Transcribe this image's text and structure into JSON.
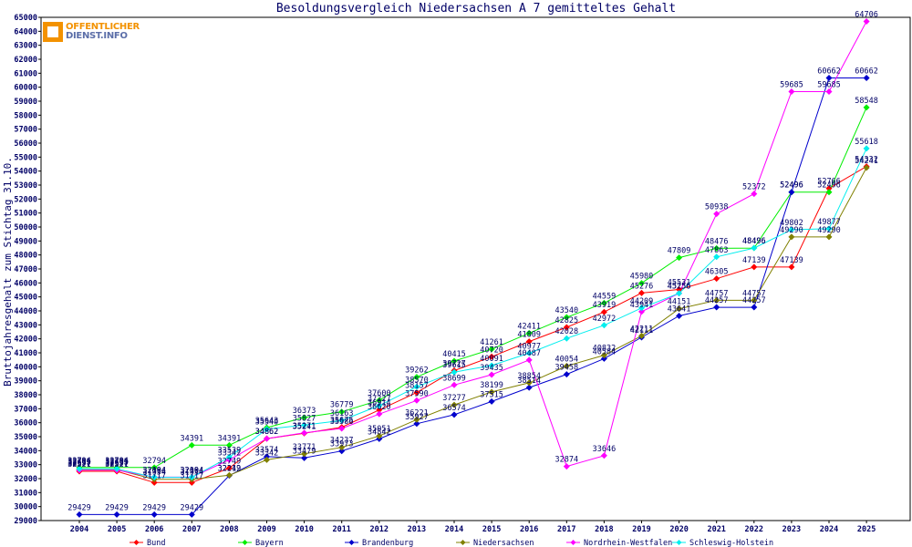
{
  "logo": {
    "line1": "OFFENTLICHER",
    "line2": "DIENST.INFO"
  },
  "chart_data": {
    "type": "line",
    "title": "Besoldungsvergleich Niedersachsen A 7 gemitteltes Gehalt",
    "xlabel": "",
    "ylabel": "Bruttojahresgehalt zum Stichtag 31.10.",
    "ylim": [
      29000,
      65000
    ],
    "ytick_step": 1000,
    "grid": false,
    "legend_position": "bottom",
    "x": [
      "2004",
      "2005",
      "2006",
      "2007",
      "2008",
      "2009",
      "2010",
      "2011",
      "2012",
      "2013",
      "2014",
      "2015",
      "2016",
      "2017",
      "2018",
      "2019",
      "2020",
      "2021",
      "2022",
      "2023",
      "2024",
      "2025"
    ],
    "series": [
      {
        "name": "Bund",
        "color": "#ff0000",
        "values": [
          32521,
          32521,
          31717,
          31717,
          32749,
          34862,
          35241,
          35675,
          36914,
          38157,
          39727,
          40720,
          41809,
          42825,
          43919,
          45276,
          45531,
          46305,
          47139,
          47139,
          52766,
          54332
        ]
      },
      {
        "name": "Bayern",
        "color": "#00ee00",
        "values": [
          32794,
          32794,
          32794,
          34391,
          34391,
          35643,
          36373,
          36779,
          37600,
          39262,
          40415,
          41261,
          42411,
          43540,
          44559,
          45980,
          47809,
          48476,
          48496,
          52496,
          52496,
          58548
        ]
      },
      {
        "name": "Brandenburg",
        "color": "#0000cc",
        "values": [
          29429,
          29429,
          29429,
          29429,
          32219,
          33574,
          33479,
          33973,
          34842,
          35927,
          36574,
          37515,
          38514,
          39458,
          40584,
          42111,
          43641,
          44257,
          44257,
          52496,
          60662,
          60662
        ]
      },
      {
        "name": "Niedersachsen",
        "color": "#808000",
        "values": [
          32639,
          32639,
          31954,
          31954,
          32242,
          33342,
          33771,
          34237,
          35051,
          36221,
          37277,
          38199,
          38854,
          40054,
          40832,
          42211,
          44151,
          44757,
          44757,
          49290,
          49290,
          54241
        ]
      },
      {
        "name": "Nordrhein-Westfalen",
        "color": "#ff00ff",
        "values": [
          32597,
          32597,
          32104,
          32104,
          33342,
          34862,
          35271,
          35586,
          36620,
          37590,
          38699,
          39435,
          40487,
          32874,
          33646,
          43941,
          45256,
          50938,
          52372,
          59685,
          59685,
          64706
        ]
      },
      {
        "name": "Schleswig-Holstein",
        "color": "#00eeee",
        "values": [
          32705,
          32705,
          32094,
          32094,
          33539,
          35540,
          35827,
          36163,
          37227,
          38570,
          39615,
          40091,
          40977,
          42028,
          42972,
          44209,
          45256,
          47863,
          48496,
          49802,
          49877,
          55618
        ]
      }
    ]
  }
}
